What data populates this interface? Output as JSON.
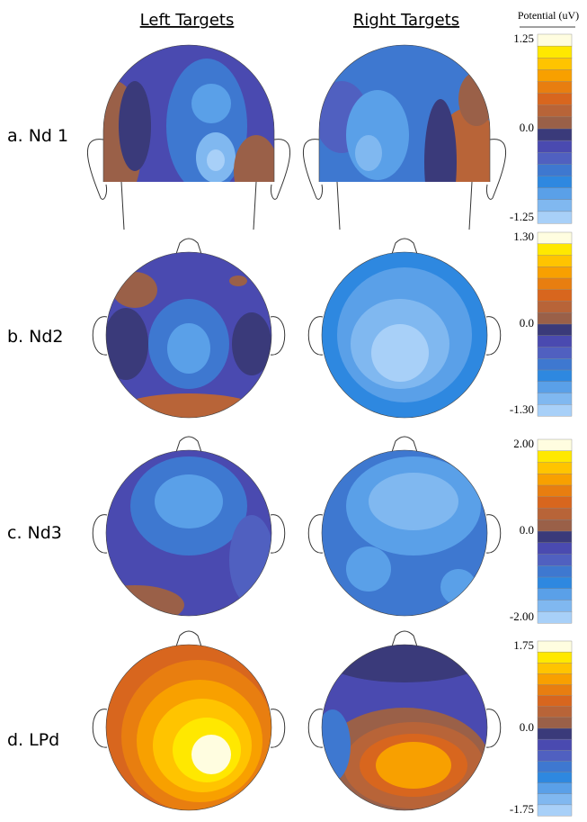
{
  "header": {
    "columns": [
      "Left Targets",
      "Right Targets"
    ],
    "colorbar_title": "Potential (uV)"
  },
  "rows": [
    {
      "label": "a. Nd 1",
      "scale": {
        "max": "1.25",
        "zero": "0.0",
        "min": "-1.25"
      }
    },
    {
      "label": "b. Nd2",
      "scale": {
        "max": "1.30",
        "zero": "0.0",
        "min": "-1.30"
      }
    },
    {
      "label": "c. Nd3",
      "scale": {
        "max": "2.00",
        "zero": "0.0",
        "min": "-2.00"
      }
    },
    {
      "label": "d. LPd",
      "scale": {
        "max": "1.75",
        "zero": "0.0",
        "min": "-1.75"
      }
    }
  ]
}
